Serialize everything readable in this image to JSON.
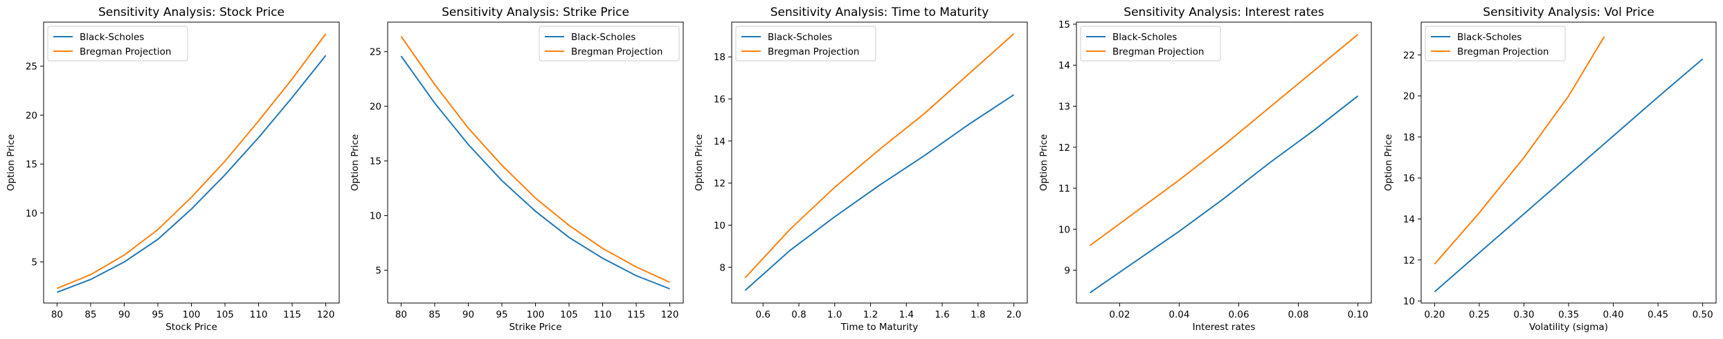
{
  "chart_data": [
    {
      "type": "line",
      "title": "Sensitivity Analysis: Stock Price",
      "xlabel": "Stock Price",
      "ylabel": "Option Price",
      "xlim": [
        78,
        122
      ],
      "ylim": [
        0.8,
        29.5
      ],
      "xticks": [
        80,
        85,
        90,
        95,
        100,
        105,
        110,
        115,
        120
      ],
      "xtick_labels": [
        "80",
        "85",
        "90",
        "95",
        "100",
        "105",
        "110",
        "115",
        "120"
      ],
      "yticks": [
        5,
        10,
        15,
        20,
        25
      ],
      "ytick_labels": [
        "5",
        "10",
        "15",
        "20",
        "25"
      ],
      "legend_position": "upper-left",
      "series": [
        {
          "name": "Black-Scholes",
          "color": "#1f77b4",
          "x": [
            80,
            85,
            90,
            95,
            100,
            105,
            110,
            115,
            120
          ],
          "y": [
            1.9,
            3.2,
            5.0,
            7.3,
            10.4,
            13.9,
            17.7,
            21.8,
            26.1
          ]
        },
        {
          "name": "Bregman Projection",
          "color": "#ff7f0e",
          "x": [
            80,
            85,
            90,
            95,
            100,
            105,
            110,
            115,
            120
          ],
          "y": [
            2.3,
            3.7,
            5.7,
            8.3,
            11.6,
            15.3,
            19.4,
            23.7,
            28.3
          ]
        }
      ]
    },
    {
      "type": "line",
      "title": "Sensitivity Analysis: Strike Price",
      "xlabel": "Strike Price",
      "ylabel": "Option Price",
      "xlim": [
        78,
        122
      ],
      "ylim": [
        2.0,
        27.7
      ],
      "xticks": [
        80,
        85,
        90,
        95,
        100,
        105,
        110,
        115,
        120
      ],
      "xtick_labels": [
        "80",
        "85",
        "90",
        "95",
        "100",
        "105",
        "110",
        "115",
        "120"
      ],
      "yticks": [
        5,
        10,
        15,
        20,
        25
      ],
      "ytick_labels": [
        "5",
        "10",
        "15",
        "20",
        "25"
      ],
      "legend_position": "upper-right",
      "series": [
        {
          "name": "Black-Scholes",
          "color": "#1f77b4",
          "x": [
            80,
            85,
            90,
            95,
            100,
            105,
            110,
            115,
            120
          ],
          "y": [
            24.6,
            20.3,
            16.5,
            13.2,
            10.4,
            8.0,
            6.1,
            4.5,
            3.3
          ]
        },
        {
          "name": "Bregman Projection",
          "color": "#ff7f0e",
          "x": [
            80,
            85,
            90,
            95,
            100,
            105,
            110,
            115,
            120
          ],
          "y": [
            26.4,
            22.0,
            18.0,
            14.6,
            11.6,
            9.1,
            7.0,
            5.3,
            3.9
          ]
        }
      ]
    },
    {
      "type": "line",
      "title": "Sensitivity Analysis: Time to Maturity",
      "xlabel": "Time to Maturity",
      "ylabel": "Option Price",
      "xlim": [
        0.425,
        2.075
      ],
      "ylim": [
        6.3,
        19.65
      ],
      "xticks": [
        0.6,
        0.8,
        1.0,
        1.2,
        1.4,
        1.6,
        1.8,
        2.0
      ],
      "xtick_labels": [
        "0.6",
        "0.8",
        "1.0",
        "1.2",
        "1.4",
        "1.6",
        "1.8",
        "2.0"
      ],
      "yticks": [
        8,
        10,
        12,
        14,
        16,
        18
      ],
      "ytick_labels": [
        "8",
        "10",
        "12",
        "14",
        "16",
        "18"
      ],
      "legend_position": "upper-left",
      "series": [
        {
          "name": "Black-Scholes",
          "color": "#1f77b4",
          "x": [
            0.5,
            0.75,
            1.0,
            1.25,
            1.5,
            1.75,
            2.0
          ],
          "y": [
            6.9,
            8.8,
            10.4,
            11.9,
            13.3,
            14.8,
            16.2
          ]
        },
        {
          "name": "Bregman Projection",
          "color": "#ff7f0e",
          "x": [
            0.5,
            0.75,
            1.0,
            1.25,
            1.5,
            1.75,
            2.0
          ],
          "y": [
            7.5,
            9.8,
            11.8,
            13.6,
            15.3,
            17.2,
            19.1
          ]
        }
      ]
    },
    {
      "type": "line",
      "title": "Sensitivity Analysis: Interest rates",
      "xlabel": "Interest rates",
      "ylabel": "Option Price",
      "xlim": [
        0.0055,
        0.1045
      ],
      "ylim": [
        8.2,
        15.05
      ],
      "xticks": [
        0.02,
        0.04,
        0.06,
        0.08,
        0.1
      ],
      "xtick_labels": [
        "0.02",
        "0.04",
        "0.06",
        "0.08",
        "0.10"
      ],
      "yticks": [
        9,
        10,
        11,
        12,
        13,
        14,
        15
      ],
      "ytick_labels": [
        "9",
        "10",
        "11",
        "12",
        "13",
        "14",
        "15"
      ],
      "legend_position": "upper-left",
      "series": [
        {
          "name": "Black-Scholes",
          "color": "#1f77b4",
          "x": [
            0.01,
            0.025,
            0.04,
            0.055,
            0.07,
            0.085,
            0.1
          ],
          "y": [
            8.45,
            9.2,
            9.95,
            10.75,
            11.6,
            12.4,
            13.25
          ]
        },
        {
          "name": "Bregman Projection",
          "color": "#ff7f0e",
          "x": [
            0.01,
            0.025,
            0.04,
            0.055,
            0.07,
            0.085,
            0.1
          ],
          "y": [
            9.6,
            10.4,
            11.2,
            12.05,
            12.95,
            13.85,
            14.75
          ]
        }
      ]
    },
    {
      "type": "line",
      "title": "Sensitivity Analysis: Vol Price",
      "xlabel": "Volatility (sigma)",
      "ylabel": "Option Price",
      "xlim": [
        0.185,
        0.515
      ],
      "ylim": [
        9.9,
        23.6
      ],
      "xticks": [
        0.2,
        0.25,
        0.3,
        0.35,
        0.4,
        0.45,
        0.5
      ],
      "xtick_labels": [
        "0.20",
        "0.25",
        "0.30",
        "0.35",
        "0.40",
        "0.45",
        "0.50"
      ],
      "yticks": [
        10,
        12,
        14,
        16,
        18,
        20,
        22
      ],
      "ytick_labels": [
        "10",
        "12",
        "14",
        "16",
        "18",
        "20",
        "22"
      ],
      "legend_position": "upper-left",
      "series": [
        {
          "name": "Black-Scholes",
          "color": "#1f77b4",
          "x": [
            0.2,
            0.25,
            0.3,
            0.35,
            0.4,
            0.45,
            0.5
          ],
          "y": [
            10.45,
            12.35,
            14.25,
            16.15,
            18.05,
            19.95,
            21.8
          ]
        },
        {
          "name": "Bregman Projection",
          "color": "#ff7f0e",
          "x": [
            0.2,
            0.25,
            0.3,
            0.35,
            0.39
          ],
          "y": [
            11.8,
            14.3,
            17.0,
            20.0,
            22.9
          ]
        }
      ]
    }
  ]
}
